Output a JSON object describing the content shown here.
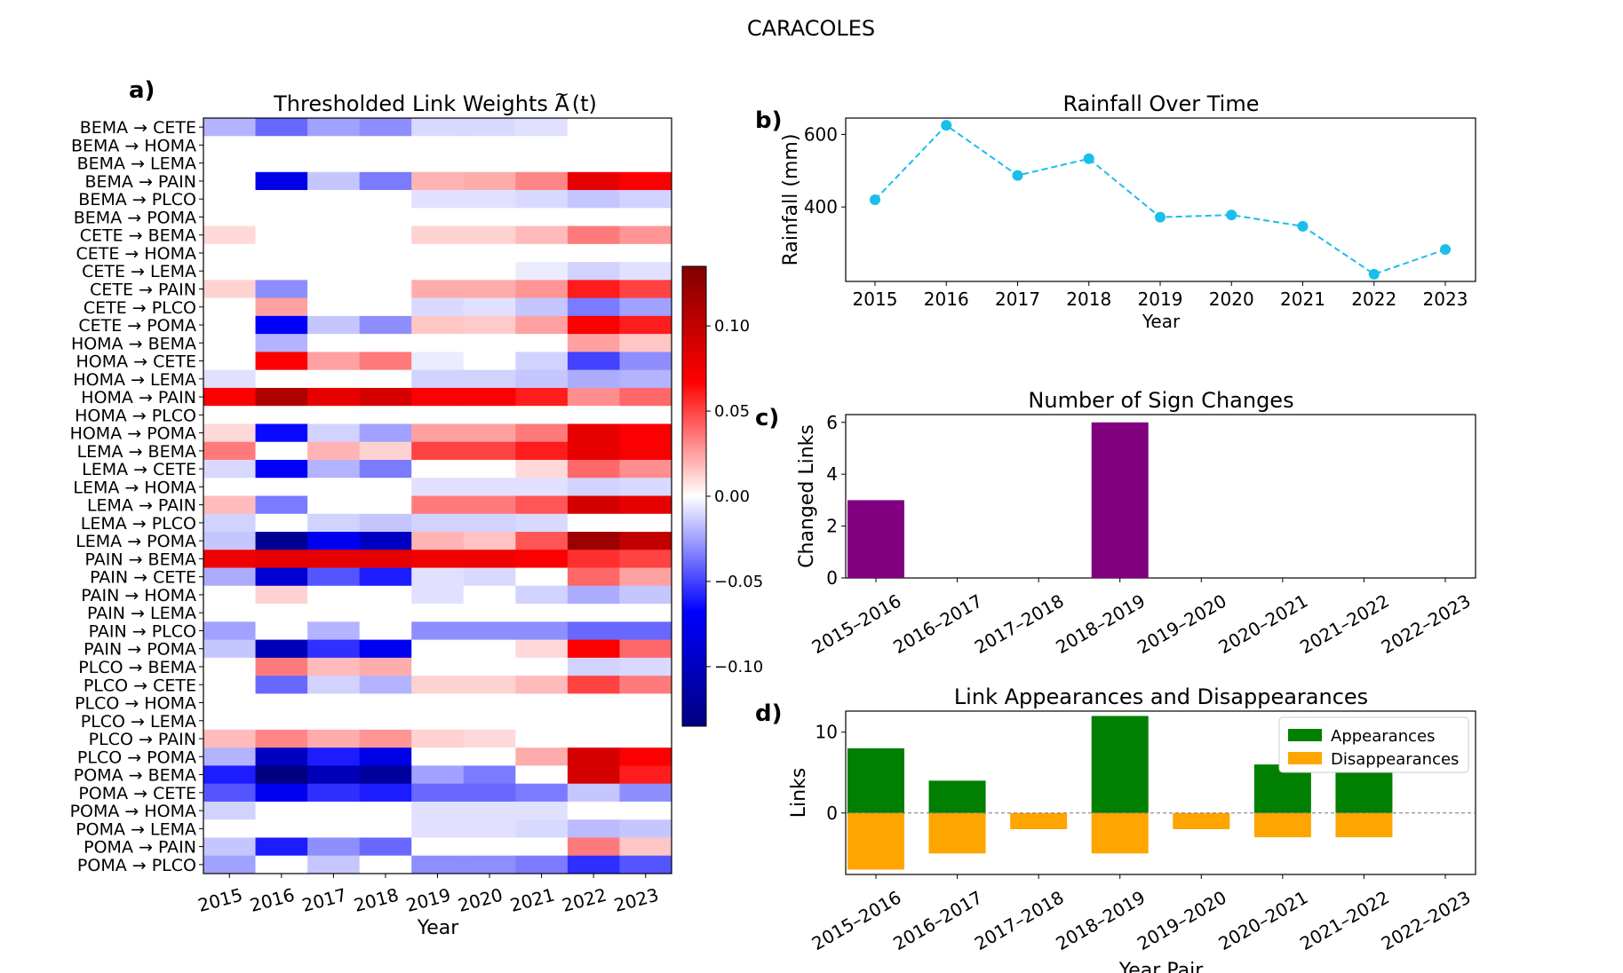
{
  "figure_title": "CARACOLES",
  "chart_data": [
    {
      "id": "a",
      "panel_label": "a)",
      "type": "heatmap",
      "title": "Thresholded Link Weights Ã(t)",
      "title_main": "Thresholded Link Weights ",
      "title_symbol": "A",
      "title_tilde": "~",
      "title_arg": "(t)",
      "xlabel": "Year",
      "columns": [
        "2015",
        "2016",
        "2017",
        "2018",
        "2019",
        "2020",
        "2021",
        "2022",
        "2023"
      ],
      "rows": [
        "BEMA → CETE",
        "BEMA → HOMA",
        "BEMA → LEMA",
        "BEMA → PAIN",
        "BEMA → PLCO",
        "BEMA → POMA",
        "CETE → BEMA",
        "CETE → HOMA",
        "CETE → LEMA",
        "CETE → PAIN",
        "CETE → PLCO",
        "CETE → POMA",
        "HOMA → BEMA",
        "HOMA → CETE",
        "HOMA → LEMA",
        "HOMA → PAIN",
        "HOMA → PLCO",
        "HOMA → POMA",
        "LEMA → BEMA",
        "LEMA → CETE",
        "LEMA → HOMA",
        "LEMA → PAIN",
        "LEMA → PLCO",
        "LEMA → POMA",
        "PAIN → BEMA",
        "PAIN → CETE",
        "PAIN → HOMA",
        "PAIN → LEMA",
        "PAIN → PLCO",
        "PAIN → POMA",
        "PLCO → BEMA",
        "PLCO → CETE",
        "PLCO → HOMA",
        "PLCO → LEMA",
        "PLCO → PAIN",
        "PLCO → POMA",
        "POMA → BEMA",
        "POMA → CETE",
        "POMA → HOMA",
        "POMA → LEMA",
        "POMA → PAIN",
        "POMA → PLCO"
      ],
      "values": [
        [
          -0.02,
          -0.04,
          -0.025,
          -0.03,
          -0.01,
          -0.01,
          -0.008,
          0,
          0
        ],
        [
          0,
          0,
          0,
          0,
          0,
          0,
          0,
          0,
          0
        ],
        [
          0,
          0,
          0,
          0,
          0,
          0,
          0,
          0,
          0
        ],
        [
          0,
          -0.08,
          -0.015,
          -0.035,
          0.02,
          0.022,
          0.032,
          0.08,
          0.07
        ],
        [
          0,
          0,
          0,
          0,
          -0.008,
          -0.008,
          -0.01,
          -0.015,
          -0.012
        ],
        [
          0,
          0,
          0,
          0,
          0,
          0,
          0,
          0,
          0
        ],
        [
          0.01,
          0,
          0,
          0,
          0.012,
          0.012,
          0.018,
          0.035,
          0.028
        ],
        [
          0,
          0,
          0,
          0,
          0,
          0,
          0,
          0,
          0
        ],
        [
          0,
          0,
          0,
          0,
          0,
          0,
          -0.005,
          -0.012,
          -0.008
        ],
        [
          0.012,
          -0.03,
          0,
          0,
          0.022,
          0.022,
          0.028,
          0.06,
          0.05
        ],
        [
          0,
          0.025,
          0,
          0,
          -0.01,
          -0.008,
          -0.015,
          -0.035,
          -0.025
        ],
        [
          0,
          -0.07,
          -0.015,
          -0.03,
          0.015,
          0.014,
          0.025,
          0.07,
          0.06
        ],
        [
          0,
          -0.02,
          0,
          0,
          0,
          0,
          0,
          0.025,
          0.015
        ],
        [
          0,
          0.07,
          0.025,
          0.035,
          -0.005,
          0,
          -0.012,
          -0.05,
          -0.03
        ],
        [
          -0.008,
          0,
          0,
          0,
          -0.012,
          -0.012,
          -0.015,
          -0.022,
          -0.02
        ],
        [
          0.07,
          0.11,
          0.08,
          0.09,
          0.07,
          0.07,
          0.06,
          0.03,
          0.04
        ],
        [
          0,
          0,
          0,
          0,
          0,
          0,
          0,
          0,
          0
        ],
        [
          0.01,
          -0.065,
          -0.012,
          -0.025,
          0.025,
          0.025,
          0.035,
          0.08,
          0.07
        ],
        [
          0.035,
          0,
          0.02,
          0.012,
          0.05,
          0.05,
          0.06,
          0.08,
          0.07
        ],
        [
          -0.01,
          -0.07,
          -0.02,
          -0.035,
          0,
          0,
          0.01,
          0.04,
          0.03
        ],
        [
          0,
          0,
          0,
          0,
          -0.008,
          -0.008,
          -0.008,
          -0.012,
          -0.01
        ],
        [
          0.018,
          -0.035,
          0,
          0,
          0.035,
          0.035,
          0.045,
          0.09,
          0.08
        ],
        [
          -0.012,
          0,
          -0.012,
          -0.015,
          -0.012,
          -0.012,
          -0.01,
          0,
          0
        ],
        [
          -0.015,
          -0.125,
          -0.075,
          -0.1,
          0.02,
          0.016,
          0.045,
          0.12,
          0.1
        ],
        [
          0.075,
          0.08,
          0.08,
          0.08,
          0.075,
          0.075,
          0.07,
          0.055,
          0.05
        ],
        [
          -0.022,
          -0.09,
          -0.045,
          -0.06,
          -0.008,
          -0.01,
          0,
          0.04,
          0.025
        ],
        [
          0,
          0.012,
          0,
          0,
          -0.008,
          0,
          -0.012,
          -0.022,
          -0.015
        ],
        [
          0,
          0,
          0,
          0,
          0,
          0,
          0,
          0,
          0
        ],
        [
          -0.025,
          0,
          -0.02,
          0,
          -0.03,
          -0.03,
          -0.03,
          -0.04,
          -0.04
        ],
        [
          -0.015,
          -0.105,
          -0.055,
          -0.075,
          0,
          0,
          0.01,
          0.07,
          0.04
        ],
        [
          0,
          0.035,
          0.018,
          0.022,
          0,
          0,
          0,
          -0.012,
          -0.01
        ],
        [
          0,
          -0.04,
          -0.012,
          -0.02,
          0.012,
          0.012,
          0.018,
          0.05,
          0.035
        ],
        [
          0,
          0,
          0,
          0,
          0,
          0,
          0,
          0,
          0
        ],
        [
          0,
          0,
          0,
          0,
          0,
          0,
          0,
          0,
          0
        ],
        [
          0.018,
          0.032,
          0.022,
          0.028,
          0.012,
          0.01,
          0,
          0,
          0
        ],
        [
          -0.02,
          -0.1,
          -0.06,
          -0.08,
          0,
          0,
          0.022,
          0.09,
          0.07
        ],
        [
          -0.06,
          -0.135,
          -0.105,
          -0.12,
          -0.025,
          -0.035,
          0,
          0.09,
          0.06
        ],
        [
          -0.045,
          -0.075,
          -0.055,
          -0.06,
          -0.04,
          -0.04,
          -0.035,
          -0.015,
          -0.03
        ],
        [
          -0.012,
          0,
          0,
          0,
          -0.008,
          -0.008,
          -0.008,
          0,
          0
        ],
        [
          0,
          0,
          0,
          0,
          -0.008,
          -0.008,
          -0.01,
          -0.018,
          -0.015
        ],
        [
          -0.015,
          -0.06,
          -0.03,
          -0.04,
          0,
          0,
          0,
          0.035,
          0.015
        ],
        [
          -0.025,
          0,
          -0.015,
          0,
          -0.03,
          -0.03,
          -0.035,
          -0.055,
          -0.045
        ]
      ],
      "colorbar": {
        "vmin": -0.135,
        "vmax": 0.135,
        "ticks": [
          0.1,
          0.05,
          0.0,
          -0.05,
          -0.1
        ],
        "tick_labels": [
          "0.10",
          "0.05",
          "0.00",
          "−0.05",
          "−0.10"
        ],
        "cmap": "seismic"
      }
    },
    {
      "id": "b",
      "panel_label": "b)",
      "type": "line",
      "title": "Rainfall Over Time",
      "xlabel": "Year",
      "ylabel": "Rainfall (mm)",
      "x": [
        "2015",
        "2016",
        "2017",
        "2018",
        "2019",
        "2020",
        "2021",
        "2022",
        "2023"
      ],
      "values": [
        420,
        625,
        487,
        533,
        372,
        378,
        347,
        215,
        283
      ],
      "ylim": [
        195,
        645
      ],
      "yticks": [
        400,
        600
      ],
      "color": "#1ABEEA",
      "line_style": "dashed",
      "marker": "circle"
    },
    {
      "id": "c",
      "panel_label": "c)",
      "type": "bar",
      "title": "Number of Sign Changes",
      "xlabel": "",
      "ylabel": "Changed Links",
      "categories": [
        "2015–2016",
        "2016–2017",
        "2017–2018",
        "2018–2019",
        "2019–2020",
        "2020–2021",
        "2021–2022",
        "2022–2023"
      ],
      "values": [
        3,
        0,
        0,
        6,
        0,
        0,
        0,
        0
      ],
      "ylim": [
        0,
        6.3
      ],
      "yticks": [
        0,
        2,
        4,
        6
      ],
      "color": "#800080"
    },
    {
      "id": "d",
      "panel_label": "d)",
      "type": "bar",
      "title": "Link Appearances and Disappearances",
      "xlabel": "Year Pair",
      "ylabel": "Links",
      "categories": [
        "2015–2016",
        "2016–2017",
        "2017–2018",
        "2018–2019",
        "2019–2020",
        "2020–2021",
        "2021–2022",
        "2022–2023"
      ],
      "series": [
        {
          "name": "Appearances",
          "values": [
            8,
            4,
            0,
            12,
            0,
            6,
            5,
            0
          ],
          "color": "#008000"
        },
        {
          "name": "Disappearances",
          "values": [
            -7,
            -5,
            -2,
            -5,
            -2,
            -3,
            -3,
            0
          ],
          "color": "#FFA500"
        }
      ],
      "ylim": [
        -7.6,
        12.6
      ],
      "yticks": [
        0,
        10
      ],
      "legend_position": "top-right",
      "zero_line": "dashed"
    }
  ]
}
